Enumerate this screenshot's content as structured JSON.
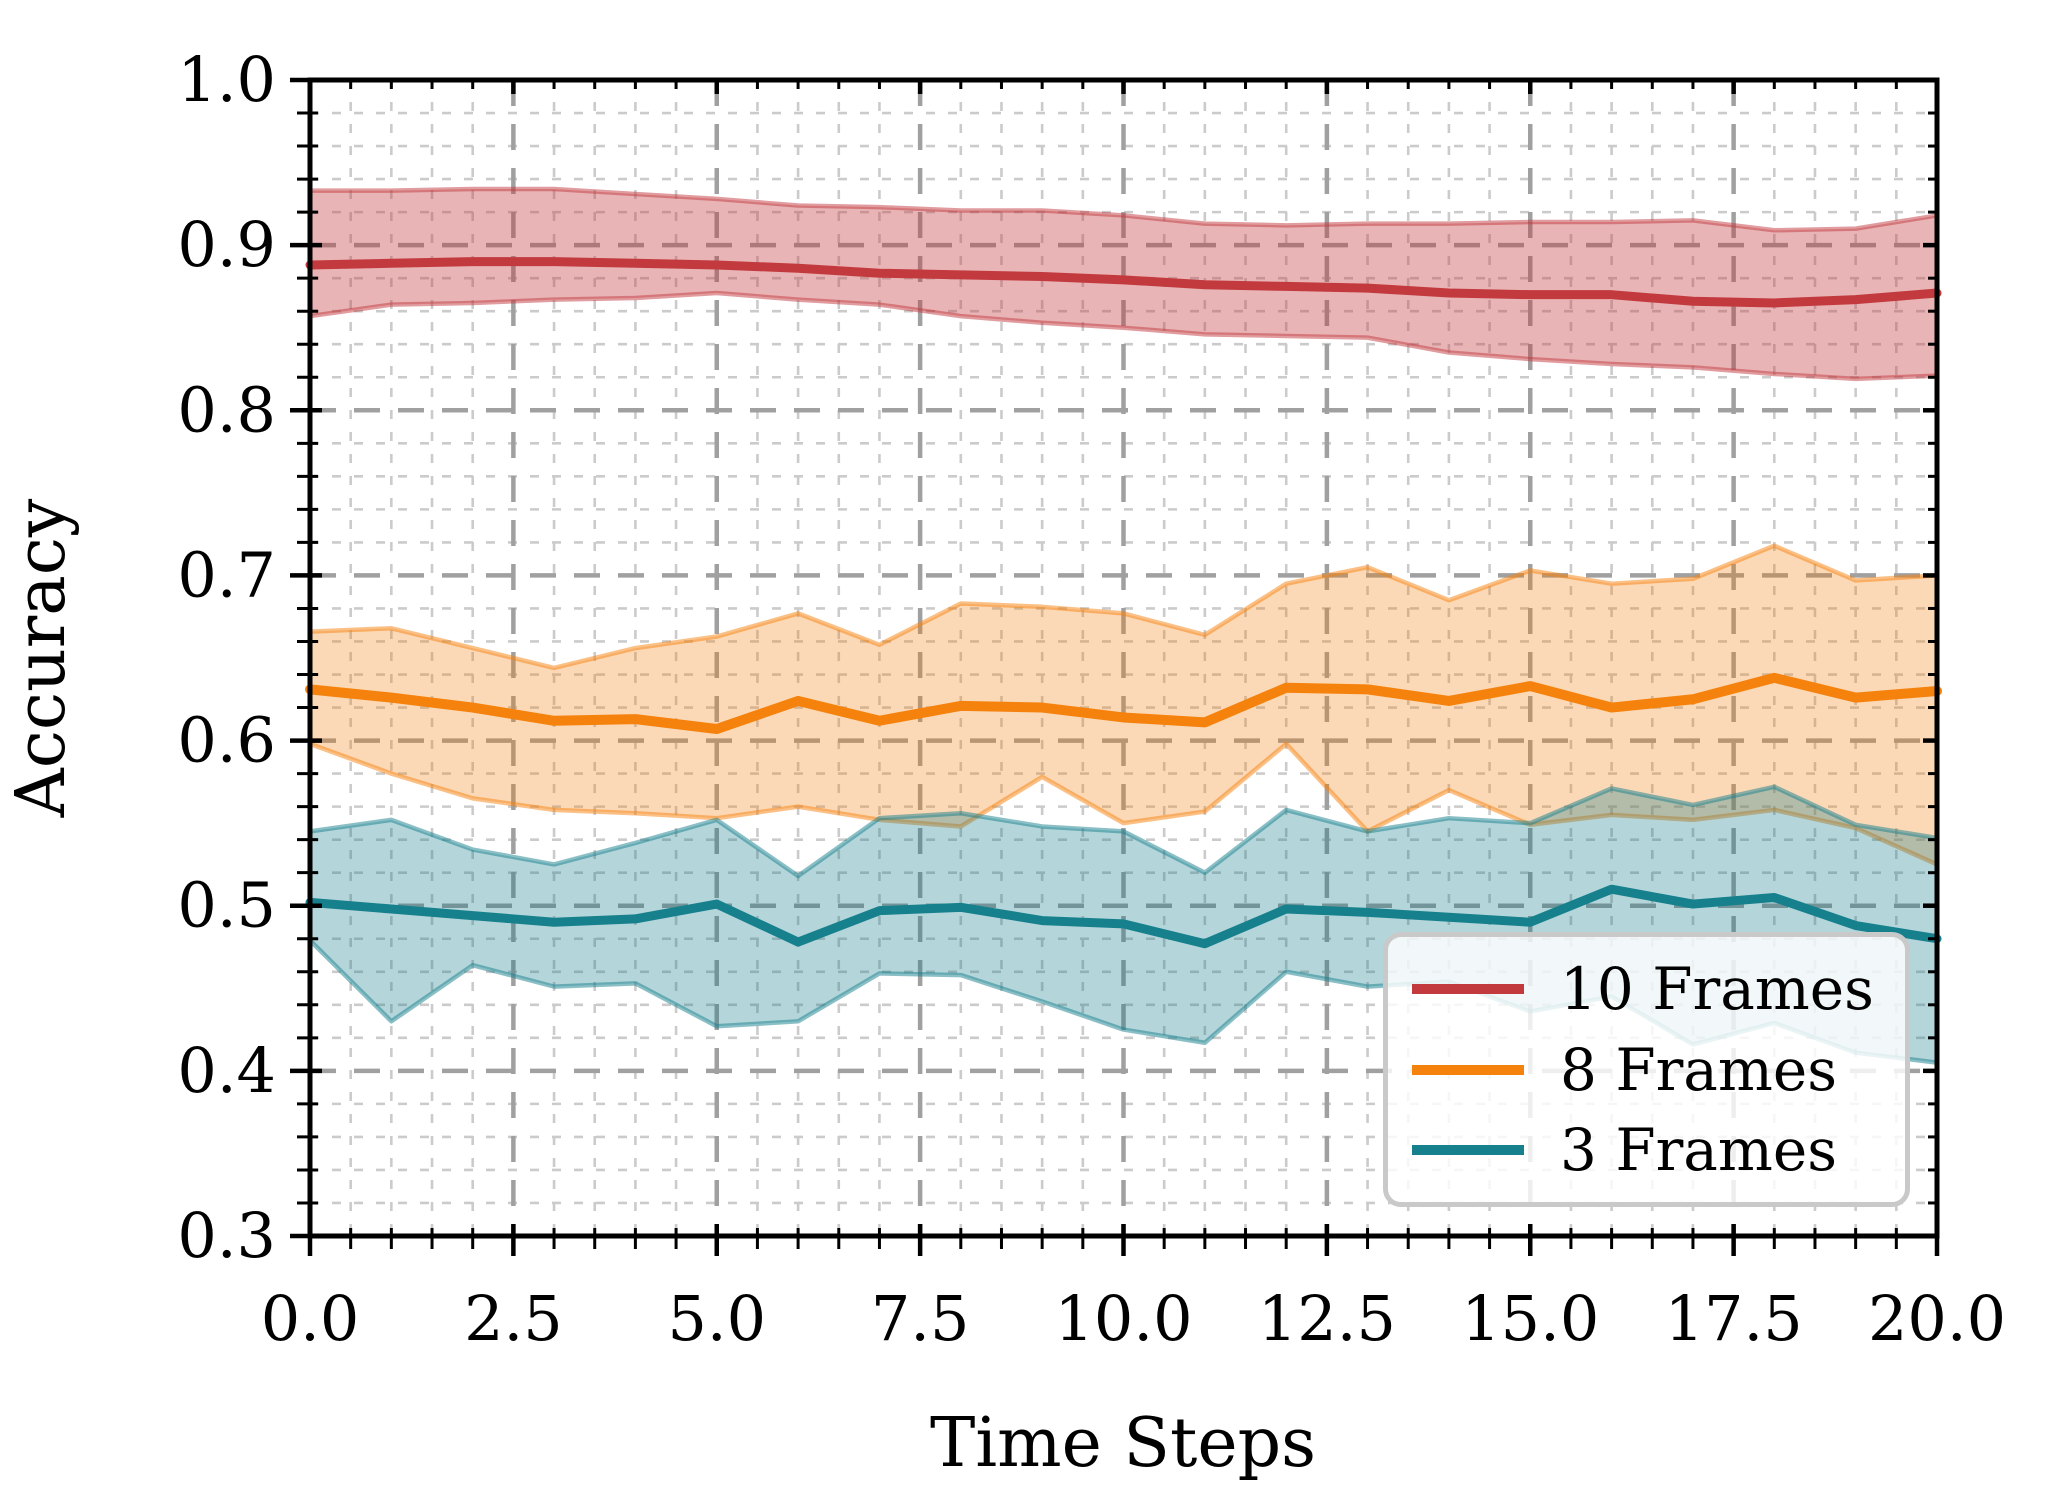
{
  "figure": {
    "background": "#ffffff"
  },
  "chart_data": {
    "type": "line",
    "title": "",
    "xlabel": "Time Steps",
    "ylabel": "Accuracy",
    "xlim": [
      0,
      20
    ],
    "ylim": [
      0.3,
      1.0
    ],
    "grid": "major and minor, dashed gray",
    "legend_position": "lower right",
    "xtick_values": [
      0,
      2.5,
      5,
      7.5,
      10,
      12.5,
      15,
      17.5,
      20
    ],
    "xtick_labels": [
      "0.0",
      "2.5",
      "5.0",
      "7.5",
      "10.0",
      "12.5",
      "15.0",
      "17.5",
      "20.0"
    ],
    "ytick_values": [
      0.3,
      0.4,
      0.5,
      0.6,
      0.7,
      0.8,
      0.9,
      1.0
    ],
    "ytick_labels": [
      "0.3",
      "0.4",
      "0.5",
      "0.6",
      "0.7",
      "0.8",
      "0.9",
      "1.0"
    ],
    "x_minor_step": 0.5,
    "y_minor_step": 0.02,
    "x": [
      0,
      1,
      2,
      3,
      4,
      5,
      6,
      7,
      8,
      9,
      10,
      11,
      12,
      13,
      14,
      15,
      16,
      17,
      18,
      19,
      20
    ],
    "series": [
      {
        "label": "10 Frames",
        "color": "#c23a3e",
        "fill_opacity": 0.38,
        "mean": [
          0.888,
          0.889,
          0.89,
          0.89,
          0.889,
          0.888,
          0.886,
          0.883,
          0.882,
          0.881,
          0.879,
          0.876,
          0.875,
          0.874,
          0.871,
          0.87,
          0.87,
          0.866,
          0.865,
          0.867,
          0.871
        ],
        "upper": [
          0.933,
          0.933,
          0.934,
          0.934,
          0.931,
          0.928,
          0.924,
          0.923,
          0.921,
          0.921,
          0.918,
          0.913,
          0.912,
          0.913,
          0.913,
          0.914,
          0.914,
          0.915,
          0.909,
          0.91,
          0.918
        ],
        "lower": [
          0.857,
          0.864,
          0.865,
          0.867,
          0.868,
          0.871,
          0.867,
          0.864,
          0.857,
          0.853,
          0.85,
          0.846,
          0.845,
          0.844,
          0.835,
          0.831,
          0.828,
          0.826,
          0.822,
          0.819,
          0.821
        ]
      },
      {
        "label": "8 Frames",
        "color": "#f5820d",
        "fill_opacity": 0.3,
        "mean": [
          0.631,
          0.626,
          0.62,
          0.612,
          0.613,
          0.607,
          0.624,
          0.612,
          0.621,
          0.62,
          0.614,
          0.611,
          0.632,
          0.631,
          0.624,
          0.633,
          0.62,
          0.625,
          0.638,
          0.626,
          0.63
        ],
        "upper": [
          0.666,
          0.668,
          0.656,
          0.644,
          0.656,
          0.663,
          0.677,
          0.658,
          0.683,
          0.681,
          0.677,
          0.664,
          0.695,
          0.705,
          0.685,
          0.703,
          0.695,
          0.698,
          0.718,
          0.697,
          0.7
        ],
        "lower": [
          0.598,
          0.58,
          0.565,
          0.558,
          0.556,
          0.553,
          0.56,
          0.552,
          0.548,
          0.578,
          0.55,
          0.557,
          0.598,
          0.545,
          0.57,
          0.549,
          0.555,
          0.552,
          0.558,
          0.547,
          0.525
        ]
      },
      {
        "label": "3 Frames",
        "color": "#17808d",
        "fill_opacity": 0.32,
        "mean": [
          0.502,
          0.498,
          0.494,
          0.49,
          0.492,
          0.501,
          0.478,
          0.497,
          0.499,
          0.491,
          0.489,
          0.477,
          0.498,
          0.496,
          0.493,
          0.49,
          0.51,
          0.501,
          0.505,
          0.488,
          0.48
        ],
        "upper": [
          0.545,
          0.552,
          0.534,
          0.525,
          0.538,
          0.552,
          0.518,
          0.553,
          0.556,
          0.548,
          0.545,
          0.52,
          0.558,
          0.545,
          0.553,
          0.55,
          0.571,
          0.561,
          0.572,
          0.549,
          0.541
        ],
        "lower": [
          0.479,
          0.43,
          0.464,
          0.451,
          0.453,
          0.427,
          0.43,
          0.459,
          0.458,
          0.442,
          0.425,
          0.417,
          0.46,
          0.451,
          0.454,
          0.436,
          0.445,
          0.416,
          0.429,
          0.411,
          0.405
        ]
      }
    ],
    "style": {
      "spine_color": "#000000",
      "major_grid_color": "#a0a0a0",
      "minor_grid_color": "#cbcbcb",
      "legend_border_color": "#c9c9c9"
    }
  }
}
